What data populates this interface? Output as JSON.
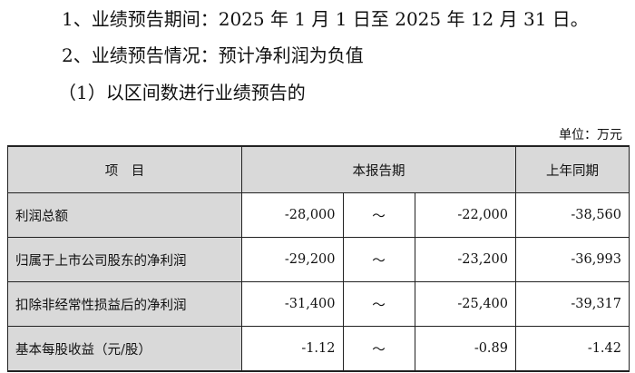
{
  "lines": [
    "1、业绩预告期间：2025 年 1 月 1 日至 2025 年 12 月 31 日。",
    "2、业绩预告情况：预计净利润为负值",
    "（1）以区间数进行业绩预告的"
  ],
  "unit": "单位：万元",
  "table": {
    "headers": [
      "项　目",
      "本报告期",
      "上年同期"
    ],
    "rows": [
      {
        "label": "利润总额",
        "low": "-28,000",
        "sep": "～",
        "high": "-22,000",
        "prev": "-38,560"
      },
      {
        "label": "归属于上市公司股东的净利润",
        "low": "-29,200",
        "sep": "～",
        "high": "-23,200",
        "prev": "-36,993"
      },
      {
        "label": "扣除非经常性损益后的净利润",
        "low": "-31,400",
        "sep": "～",
        "high": "-25,400",
        "prev": "-39,317"
      },
      {
        "label": "基本每股收益（元/股）",
        "low": "-1.12",
        "sep": "～",
        "high": "-0.89",
        "prev": "-1.42"
      }
    ]
  }
}
